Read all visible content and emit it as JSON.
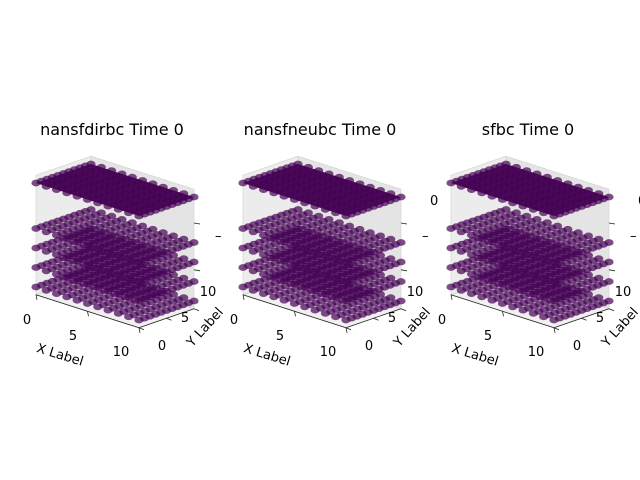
{
  "figure": {
    "background": "#ffffff"
  },
  "chart_data": [
    {
      "type": "scatter3d",
      "title": "nansfdirbc Time 0",
      "xlabel": "X Label",
      "ylabel": "Y Label",
      "zlabel": "",
      "x_ticks": [
        "0",
        "5",
        "10"
      ],
      "y_ticks": [
        "0",
        "5",
        "10"
      ],
      "z_tick_glyphs": [
        "–",
        "0"
      ],
      "xlim": [
        0,
        10
      ],
      "ylim": [
        0,
        10
      ],
      "grid_x": [
        0,
        1,
        2,
        3,
        4,
        5,
        6,
        7,
        8,
        9,
        10
      ],
      "grid_y": [
        0,
        1,
        2,
        3,
        4,
        5,
        6,
        7,
        8,
        9,
        10
      ],
      "layers": 5,
      "marker_color": "#440154",
      "marker_alpha": 0.7
    },
    {
      "type": "scatter3d",
      "title": "nansfneubc Time 0",
      "xlabel": "X Label",
      "ylabel": "Y Label",
      "zlabel": "",
      "x_ticks": [
        "0",
        "5",
        "10"
      ],
      "y_ticks": [
        "0",
        "5",
        "10"
      ],
      "z_tick_glyphs": [
        "–",
        "0"
      ],
      "xlim": [
        0,
        10
      ],
      "ylim": [
        0,
        10
      ],
      "grid_x": [
        0,
        1,
        2,
        3,
        4,
        5,
        6,
        7,
        8,
        9,
        10
      ],
      "grid_y": [
        0,
        1,
        2,
        3,
        4,
        5,
        6,
        7,
        8,
        9,
        10
      ],
      "layers": 5,
      "marker_color": "#440154",
      "marker_alpha": 0.7
    },
    {
      "type": "scatter3d",
      "title": "sfbc Time 0",
      "xlabel": "X Label",
      "ylabel": "Y Label",
      "zlabel": "",
      "x_ticks": [
        "0",
        "5",
        "10"
      ],
      "y_ticks": [
        "0",
        "5",
        "10"
      ],
      "z_tick_glyphs": [
        "–",
        "0"
      ],
      "xlim": [
        0,
        10
      ],
      "ylim": [
        0,
        10
      ],
      "grid_x": [
        0,
        1,
        2,
        3,
        4,
        5,
        6,
        7,
        8,
        9,
        10
      ],
      "grid_y": [
        0,
        1,
        2,
        3,
        4,
        5,
        6,
        7,
        8,
        9,
        10
      ],
      "layers": 5,
      "marker_color": "#440154",
      "marker_alpha": 0.7
    }
  ]
}
